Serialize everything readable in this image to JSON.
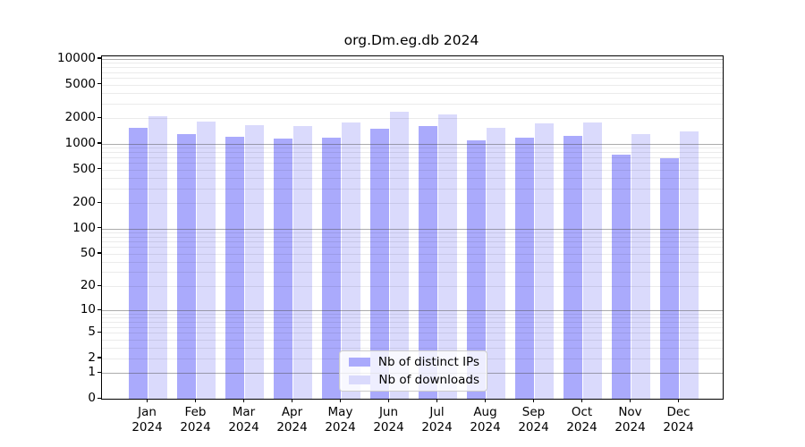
{
  "title": "org.Dm.eg.db 2024",
  "chart_data": {
    "type": "bar",
    "title": "org.Dm.eg.db 2024",
    "categories": [
      "Jan",
      "Feb",
      "Mar",
      "Apr",
      "May",
      "Jun",
      "Jul",
      "Aug",
      "Sep",
      "Oct",
      "Nov",
      "Dec"
    ],
    "category_year": "2024",
    "x_tick_labels": [
      "Jan 2024",
      "Feb 2024",
      "Mar 2024",
      "Apr 2024",
      "May 2024",
      "Jun 2024",
      "Jul 2024",
      "Aug 2024",
      "Sep 2024",
      "Oct 2024",
      "Nov 2024",
      "Dec 2024"
    ],
    "series": [
      {
        "name": "Nb of distinct IPs",
        "color": "#AAAAFC",
        "values": [
          1550,
          1300,
          1200,
          1150,
          1180,
          1520,
          1620,
          1110,
          1180,
          1250,
          740,
          670
        ]
      },
      {
        "name": "Nb of downloads",
        "color": "#DADAFC",
        "values": [
          2100,
          1820,
          1660,
          1620,
          1790,
          2380,
          2210,
          1530,
          1760,
          1790,
          1310,
          1420
        ]
      }
    ],
    "y_scale": "log10(1+v)",
    "y_tick_values": [
      10000,
      5000,
      2000,
      1000,
      500,
      200,
      100,
      50,
      20,
      10,
      5,
      2,
      1,
      0
    ],
    "y_major_gridlines": [
      1,
      10,
      100,
      1000,
      10000
    ],
    "ylim": [
      0,
      10750
    ],
    "grid": "both",
    "legend": {
      "position": "bottom-center",
      "entries": [
        "Nb of distinct IPs",
        "Nb of downloads"
      ]
    }
  }
}
